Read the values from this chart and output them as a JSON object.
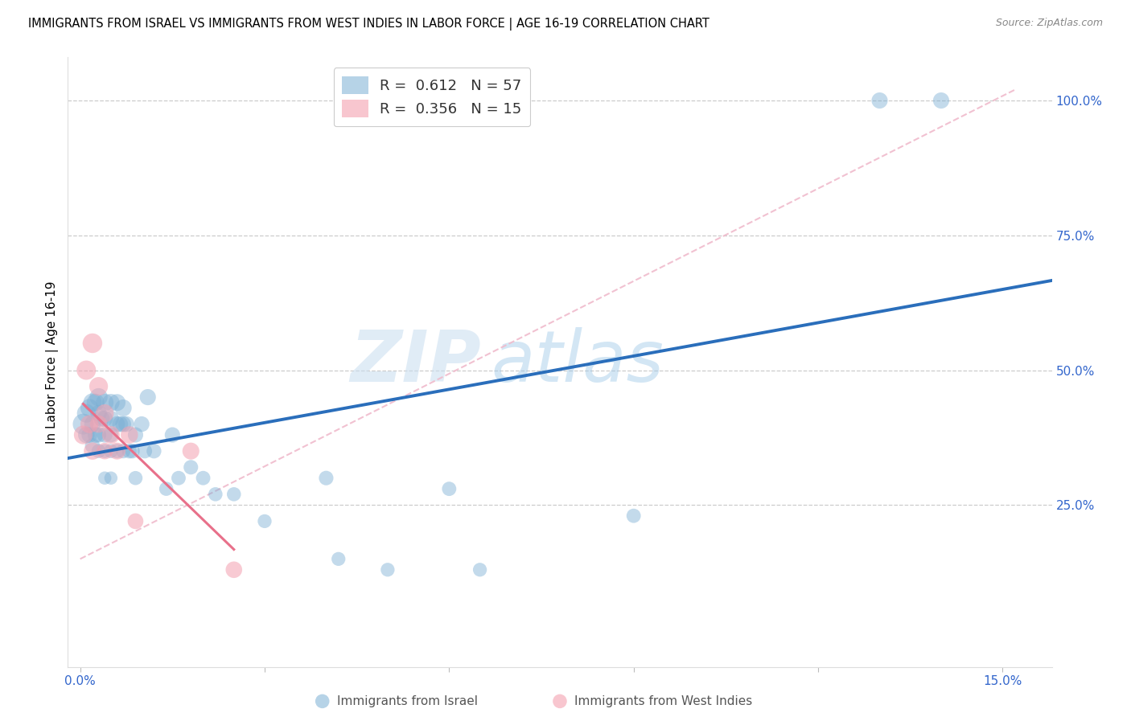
{
  "title": "IMMIGRANTS FROM ISRAEL VS IMMIGRANTS FROM WEST INDIES IN LABOR FORCE | AGE 16-19 CORRELATION CHART",
  "source": "Source: ZipAtlas.com",
  "ylabel_label": "In Labor Force | Age 16-19",
  "xlim": [
    -0.002,
    0.158
  ],
  "ylim": [
    -0.05,
    1.08
  ],
  "R_israel": 0.612,
  "N_israel": 57,
  "R_west_indies": 0.356,
  "N_west_indies": 15,
  "color_israel": "#7BAFD4",
  "color_west_indies": "#F4A0B0",
  "color_israel_line": "#2A6EBB",
  "color_west_indies_line": "#E8708A",
  "color_diag_line": "#F0BBCC",
  "watermark_zip": "ZIP",
  "watermark_atlas": "atlas",
  "israel_x": [
    0.0005,
    0.001,
    0.001,
    0.0015,
    0.0015,
    0.002,
    0.002,
    0.002,
    0.0025,
    0.0025,
    0.003,
    0.003,
    0.003,
    0.003,
    0.0035,
    0.004,
    0.004,
    0.004,
    0.004,
    0.004,
    0.005,
    0.005,
    0.005,
    0.005,
    0.005,
    0.006,
    0.006,
    0.006,
    0.0065,
    0.007,
    0.007,
    0.007,
    0.0075,
    0.008,
    0.0085,
    0.009,
    0.009,
    0.01,
    0.0105,
    0.011,
    0.012,
    0.014,
    0.015,
    0.016,
    0.018,
    0.02,
    0.022,
    0.025,
    0.03,
    0.04,
    0.042,
    0.05,
    0.06,
    0.065,
    0.09,
    0.13,
    0.14
  ],
  "israel_y": [
    0.4,
    0.42,
    0.38,
    0.43,
    0.38,
    0.44,
    0.4,
    0.36,
    0.44,
    0.38,
    0.45,
    0.42,
    0.38,
    0.35,
    0.41,
    0.44,
    0.41,
    0.38,
    0.35,
    0.3,
    0.44,
    0.41,
    0.38,
    0.35,
    0.3,
    0.44,
    0.4,
    0.35,
    0.4,
    0.43,
    0.4,
    0.35,
    0.4,
    0.35,
    0.35,
    0.38,
    0.3,
    0.4,
    0.35,
    0.45,
    0.35,
    0.28,
    0.38,
    0.3,
    0.32,
    0.3,
    0.27,
    0.27,
    0.22,
    0.3,
    0.15,
    0.13,
    0.28,
    0.13,
    0.23,
    1.0,
    1.0
  ],
  "west_indies_x": [
    0.0005,
    0.001,
    0.0015,
    0.002,
    0.002,
    0.003,
    0.003,
    0.004,
    0.004,
    0.005,
    0.006,
    0.008,
    0.009,
    0.018,
    0.025
  ],
  "west_indies_y": [
    0.38,
    0.5,
    0.4,
    0.55,
    0.35,
    0.47,
    0.4,
    0.42,
    0.35,
    0.38,
    0.35,
    0.38,
    0.22,
    0.35,
    0.13
  ],
  "israel_sizes": [
    350,
    280,
    220,
    260,
    200,
    270,
    220,
    180,
    250,
    200,
    260,
    220,
    190,
    160,
    210,
    250,
    210,
    190,
    160,
    140,
    240,
    210,
    180,
    160,
    140,
    230,
    200,
    170,
    200,
    230,
    200,
    170,
    200,
    175,
    175,
    190,
    160,
    195,
    175,
    210,
    175,
    160,
    190,
    165,
    170,
    165,
    160,
    160,
    155,
    170,
    155,
    155,
    165,
    155,
    165,
    210,
    210
  ],
  "west_indies_sizes": [
    280,
    300,
    260,
    310,
    240,
    280,
    240,
    260,
    220,
    250,
    230,
    240,
    200,
    230,
    220
  ]
}
